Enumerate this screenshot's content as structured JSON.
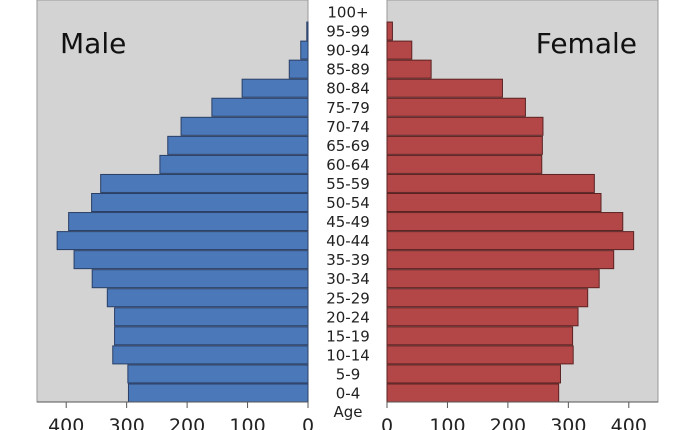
{
  "chart_data": {
    "type": "bar",
    "orientation": "horizontal",
    "xlabel": "",
    "ylabel": "Age",
    "categories": [
      "0-4",
      "5-9",
      "10-14",
      "15-19",
      "20-24",
      "25-29",
      "30-34",
      "35-39",
      "40-44",
      "45-49",
      "50-54",
      "55-59",
      "60-64",
      "65-69",
      "70-74",
      "75-79",
      "80-84",
      "85-89",
      "90-94",
      "95-99",
      "100+"
    ],
    "series": [
      {
        "name": "Male",
        "color": "#4a78b8",
        "values": [
          297,
          298,
          323,
          320,
          320,
          332,
          357,
          387,
          415,
          396,
          358,
          343,
          245,
          232,
          210,
          159,
          109,
          31,
          12,
          2,
          0
        ]
      },
      {
        "name": "Female",
        "color": "#b34747",
        "values": [
          284,
          287,
          308,
          307,
          316,
          332,
          351,
          375,
          408,
          390,
          354,
          343,
          256,
          257,
          258,
          229,
          191,
          73,
          41,
          9,
          0
        ]
      }
    ],
    "xlim": [
      0,
      450
    ],
    "xticks": [
      0,
      100,
      200,
      300,
      400
    ],
    "grid": false
  }
}
